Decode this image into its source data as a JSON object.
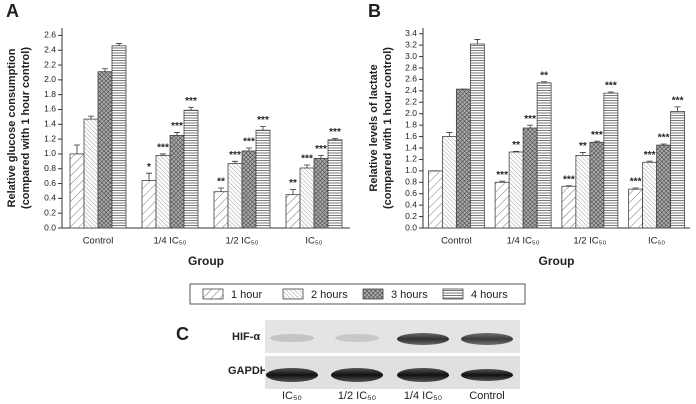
{
  "chart_data": [
    {
      "type": "bar",
      "panel": "A",
      "ylabel": [
        "Relative glucose consumption",
        "(compared with 1 hour control)"
      ],
      "xlabel": "Group",
      "categories": [
        "Control",
        "1/4 IC₅₀",
        "1/2 IC₅₀",
        "IC₅₀"
      ],
      "ylim": [
        0,
        2.7
      ],
      "yticks": [
        {
          "value": 0,
          "label": "0.0"
        },
        0.2,
        0.4,
        0.6,
        0.8,
        {
          "value": 1,
          "label": "1.0"
        },
        1.2,
        1.4,
        1.6,
        1.8,
        {
          "value": 2,
          "label": "2.0"
        },
        2.2,
        2.4,
        2.6
      ],
      "series": [
        {
          "values": [
            1.0,
            0.64,
            0.49,
            0.45
          ],
          "errors": [
            0.12,
            0.1,
            0.05,
            0.07
          ],
          "labels": [
            null,
            "*",
            "**",
            "**"
          ]
        },
        {
          "values": [
            1.47,
            0.98,
            0.87,
            0.81
          ],
          "errors": [
            0.04,
            0.02,
            0.03,
            0.04
          ],
          "labels": [
            null,
            "***",
            "***",
            "***"
          ]
        },
        {
          "values": [
            2.11,
            1.25,
            1.04,
            0.94
          ],
          "errors": [
            0.04,
            0.04,
            0.04,
            0.04
          ],
          "labels": [
            null,
            "***",
            "***",
            "***"
          ]
        },
        {
          "values": [
            2.46,
            1.59,
            1.32,
            1.19
          ],
          "errors": [
            0.03,
            0.04,
            0.05,
            0.02
          ],
          "labels": [
            null,
            "***",
            "***",
            "***"
          ]
        }
      ]
    },
    {
      "type": "bar",
      "panel": "B",
      "ylabel": [
        "Relative levels of lactate",
        "(compared with 1 hour control)"
      ],
      "xlabel": "Group",
      "categories": [
        "Control",
        "1/4 IC₅₀",
        "1/2 IC₅₀",
        "IC₅₀"
      ],
      "ylim": [
        0,
        3.5
      ],
      "yticks": [
        {
          "value": 0,
          "label": "0.0"
        },
        0.2,
        0.4,
        0.6,
        0.8,
        {
          "value": 1,
          "label": "1.0"
        },
        1.2,
        1.4,
        1.6,
        1.8,
        {
          "value": 2,
          "label": "2.0"
        },
        2.2,
        2.4,
        2.6,
        2.8,
        {
          "value": 3,
          "label": "3.0"
        },
        3.2,
        3.4
      ],
      "series": [
        {
          "values": [
            1.0,
            0.8,
            0.73,
            0.68
          ],
          "errors": [
            0,
            0.02,
            0.01,
            0.02
          ],
          "labels": [
            null,
            "***",
            "***",
            "***"
          ]
        },
        {
          "values": [
            1.6,
            1.33,
            1.27,
            1.15
          ],
          "errors": [
            0.07,
            0.01,
            0.05,
            0.02
          ],
          "labels": [
            null,
            "**",
            "**",
            "***"
          ]
        },
        {
          "values": [
            2.43,
            1.75,
            1.5,
            1.45
          ],
          "errors": [
            0,
            0.05,
            0.02,
            0.02
          ],
          "labels": [
            null,
            "***",
            "***",
            "***"
          ]
        },
        {
          "values": [
            3.22,
            2.54,
            2.36,
            2.04
          ],
          "errors": [
            0.08,
            0.02,
            0.02,
            0.08
          ],
          "labels": [
            null,
            "**",
            "***",
            "***"
          ]
        }
      ]
    }
  ],
  "legend": [
    "1 hour",
    "2 hours",
    "3 hours",
    "4 hours"
  ],
  "blot": {
    "panel": "C",
    "rows": [
      "HIF-α",
      "GAPDH"
    ],
    "lanes": [
      "IC₅₀",
      "1/2 IC₅₀",
      "1/4 IC₅₀",
      "Control"
    ]
  }
}
